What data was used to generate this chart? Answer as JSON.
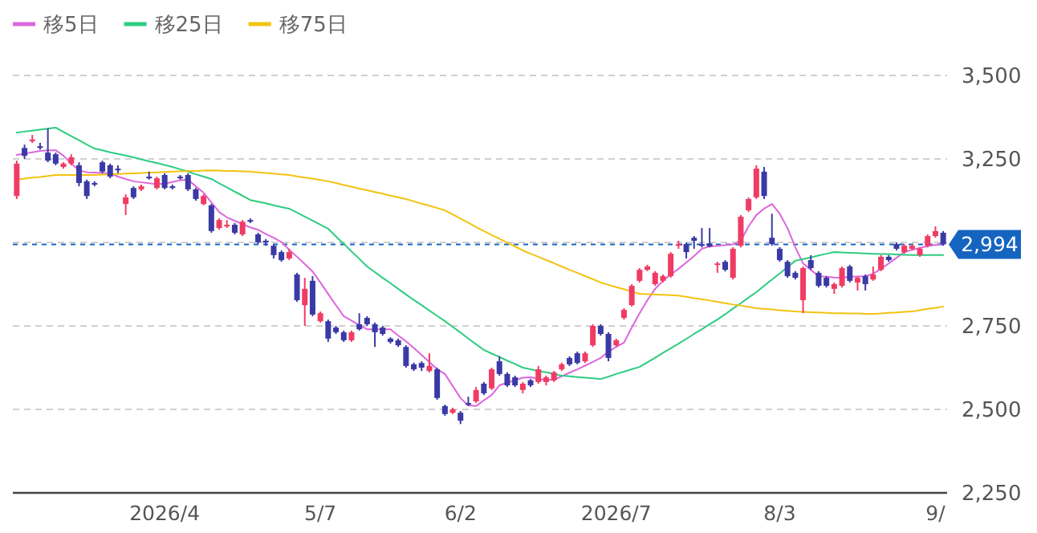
{
  "chart_data": {
    "type": "candlestick",
    "categories": [
      null,
      null,
      null,
      null,
      null,
      null,
      null,
      null,
      null,
      null,
      null,
      null,
      null,
      null,
      null,
      null,
      null,
      null,
      null,
      "2026/4",
      null,
      null,
      null,
      null,
      null,
      null,
      null,
      null,
      null,
      null,
      null,
      null,
      null,
      null,
      null,
      null,
      null,
      null,
      null,
      "5/7",
      null,
      null,
      null,
      null,
      null,
      null,
      null,
      null,
      null,
      null,
      null,
      null,
      null,
      null,
      null,
      null,
      null,
      "6/2",
      null,
      null,
      null,
      null,
      null,
      null,
      null,
      null,
      null,
      null,
      null,
      null,
      null,
      null,
      null,
      null,
      null,
      null,
      null,
      "2026/7",
      null,
      null,
      null,
      null,
      null,
      null,
      null,
      null,
      null,
      null,
      null,
      null,
      null,
      null,
      null,
      null,
      null,
      null,
      null,
      null,
      "8/3",
      null,
      null,
      null,
      null,
      null,
      null,
      null,
      null,
      null,
      null,
      null,
      null,
      null,
      null,
      null,
      null,
      null,
      null,
      null,
      "9/",
      null
    ],
    "ohlc": [
      [
        3139,
        3245,
        3130,
        3236
      ],
      [
        3283,
        3293,
        3250,
        3259
      ],
      [
        3303,
        3322,
        3298,
        3308
      ],
      [
        3288,
        3298,
        3278,
        3283
      ],
      [
        3269,
        3341,
        3240,
        3245
      ],
      [
        3264,
        3269,
        3231,
        3236
      ],
      [
        3226,
        3240,
        3221,
        3236
      ],
      [
        3236,
        3264,
        3231,
        3255
      ],
      [
        3231,
        3240,
        3168,
        3178
      ],
      [
        3183,
        3188,
        3130,
        3139
      ],
      [
        3178,
        3183,
        3168,
        3173
      ],
      [
        3240,
        3245,
        3207,
        3212
      ],
      [
        3231,
        3236,
        3192,
        3197
      ],
      [
        3221,
        3231,
        3207,
        3216
      ],
      [
        3115,
        3144,
        3082,
        3135
      ],
      [
        3163,
        3168,
        3130,
        3135
      ],
      [
        3159,
        3173,
        3154,
        3168
      ],
      [
        3197,
        3212,
        3188,
        3192
      ],
      [
        3163,
        3197,
        3159,
        3192
      ],
      [
        3202,
        3207,
        3159,
        3163
      ],
      [
        3168,
        3173,
        3159,
        3163
      ],
      [
        3197,
        3202,
        3188,
        3192
      ],
      [
        3202,
        3207,
        3154,
        3159
      ],
      [
        3159,
        3163,
        3125,
        3130
      ],
      [
        3115,
        3144,
        3111,
        3139
      ],
      [
        3111,
        3115,
        3029,
        3034
      ],
      [
        3043,
        3072,
        3038,
        3067
      ],
      [
        3048,
        3067,
        3043,
        3053
      ],
      [
        3053,
        3058,
        3024,
        3029
      ],
      [
        3024,
        3067,
        3019,
        3062
      ],
      [
        3067,
        3072,
        3058,
        3062
      ],
      [
        3024,
        3029,
        2995,
        3000
      ],
      [
        3005,
        3010,
        2990,
        3000
      ],
      [
        2990,
        2995,
        2952,
        2962
      ],
      [
        2971,
        2976,
        2942,
        2947
      ],
      [
        2952,
        2981,
        2947,
        2971
      ],
      [
        2904,
        2909,
        2822,
        2827
      ],
      [
        2812,
        2894,
        2750,
        2861
      ],
      [
        2885,
        2899,
        2779,
        2784
      ],
      [
        2764,
        2793,
        2760,
        2788
      ],
      [
        2764,
        2769,
        2702,
        2712
      ],
      [
        2745,
        2750,
        2726,
        2731
      ],
      [
        2731,
        2736,
        2702,
        2707
      ],
      [
        2707,
        2736,
        2702,
        2731
      ],
      [
        2755,
        2788,
        2736,
        2740
      ],
      [
        2774,
        2779,
        2750,
        2755
      ],
      [
        2755,
        2760,
        2687,
        2731
      ],
      [
        2745,
        2750,
        2721,
        2726
      ],
      [
        2712,
        2716,
        2697,
        2702
      ],
      [
        2707,
        2712,
        2687,
        2692
      ],
      [
        2687,
        2692,
        2625,
        2630
      ],
      [
        2635,
        2640,
        2615,
        2620
      ],
      [
        2639,
        2644,
        2615,
        2625
      ],
      [
        2615,
        2668,
        2611,
        2630
      ],
      [
        2620,
        2625,
        2529,
        2534
      ],
      [
        2510,
        2514,
        2481,
        2486
      ],
      [
        2490,
        2505,
        2486,
        2500
      ],
      [
        2490,
        2495,
        2456,
        2466
      ],
      [
        2519,
        2538,
        2510,
        2514
      ],
      [
        2524,
        2567,
        2519,
        2558
      ],
      [
        2577,
        2582,
        2543,
        2548
      ],
      [
        2563,
        2625,
        2558,
        2620
      ],
      [
        2644,
        2659,
        2601,
        2606
      ],
      [
        2606,
        2611,
        2567,
        2572
      ],
      [
        2596,
        2601,
        2567,
        2572
      ],
      [
        2558,
        2582,
        2548,
        2577
      ],
      [
        2587,
        2591,
        2567,
        2572
      ],
      [
        2582,
        2630,
        2577,
        2620
      ],
      [
        2582,
        2601,
        2572,
        2596
      ],
      [
        2587,
        2615,
        2582,
        2611
      ],
      [
        2620,
        2640,
        2615,
        2635
      ],
      [
        2654,
        2659,
        2630,
        2635
      ],
      [
        2668,
        2673,
        2635,
        2639
      ],
      [
        2644,
        2673,
        2639,
        2668
      ],
      [
        2692,
        2755,
        2687,
        2750
      ],
      [
        2750,
        2755,
        2721,
        2726
      ],
      [
        2726,
        2731,
        2644,
        2654
      ],
      [
        2692,
        2712,
        2687,
        2707
      ],
      [
        2774,
        2803,
        2769,
        2798
      ],
      [
        2812,
        2875,
        2808,
        2870
      ],
      [
        2885,
        2923,
        2880,
        2918
      ],
      [
        2918,
        2933,
        2914,
        2928
      ],
      [
        2875,
        2914,
        2870,
        2909
      ],
      [
        2885,
        2904,
        2880,
        2899
      ],
      [
        2899,
        2971,
        2894,
        2966
      ],
      [
        2990,
        3005,
        2981,
        2995
      ],
      [
        2995,
        3000,
        2952,
        2971
      ],
      [
        3014,
        3019,
        2981,
        3005
      ],
      [
        2995,
        3043,
        2985,
        2990
      ],
      [
        2997,
        3043,
        2985,
        2988
      ],
      [
        2933,
        2942,
        2909,
        2937
      ],
      [
        2942,
        2947,
        2913,
        2918
      ],
      [
        2894,
        2986,
        2889,
        2981
      ],
      [
        2990,
        3082,
        2985,
        3077
      ],
      [
        3096,
        3135,
        3091,
        3130
      ],
      [
        3135,
        3231,
        3130,
        3221
      ],
      [
        3212,
        3226,
        3130,
        3139
      ],
      [
        3014,
        3086,
        2990,
        2995
      ],
      [
        2981,
        2986,
        2942,
        2947
      ],
      [
        2942,
        2947,
        2894,
        2899
      ],
      [
        2909,
        2914,
        2889,
        2894
      ],
      [
        2827,
        2928,
        2788,
        2923
      ],
      [
        2947,
        2962,
        2918,
        2923
      ],
      [
        2909,
        2914,
        2865,
        2870
      ],
      [
        2894,
        2899,
        2865,
        2870
      ],
      [
        2861,
        2880,
        2846,
        2875
      ],
      [
        2870,
        2928,
        2865,
        2923
      ],
      [
        2928,
        2933,
        2880,
        2885
      ],
      [
        2880,
        2899,
        2856,
        2894
      ],
      [
        2899,
        2904,
        2856,
        2875
      ],
      [
        2889,
        2928,
        2885,
        2904
      ],
      [
        2918,
        2962,
        2914,
        2957
      ],
      [
        2957,
        2962,
        2942,
        2947
      ],
      [
        2995,
        3000,
        2976,
        2981
      ],
      [
        2971,
        2995,
        2966,
        2990
      ],
      [
        2981,
        2995,
        2976,
        2990
      ],
      [
        2962,
        2986,
        2957,
        2981
      ],
      [
        2990,
        3024,
        2985,
        3019
      ],
      [
        3019,
        3048,
        3014,
        3034
      ],
      [
        3029,
        3034,
        2990,
        2994
      ]
    ],
    "colors": [
      "#f03c64",
      "#3a3aa6",
      "#f03c64",
      "#3a3aa6",
      "#3a3aa6",
      "#3a3aa6",
      "#f03c64",
      "#f03c64",
      "#3a3aa6",
      "#3a3aa6",
      "#3a3aa6",
      "#3a3aa6",
      "#3a3aa6",
      "#3a3aa6",
      "#f03c64",
      "#3a3aa6",
      "#f03c64",
      "#3a3aa6",
      "#f03c64",
      "#3a3aa6",
      "#3a3aa6",
      "#3a3aa6",
      "#3a3aa6",
      "#3a3aa6",
      "#f03c64",
      "#3a3aa6",
      "#f03c64",
      "#f03c64",
      "#3a3aa6",
      "#f03c64",
      "#3a3aa6",
      "#3a3aa6",
      "#3a3aa6",
      "#3a3aa6",
      "#3a3aa6",
      "#f03c64",
      "#3a3aa6",
      "#f03c64",
      "#3a3aa6",
      "#f03c64",
      "#3a3aa6",
      "#3a3aa6",
      "#3a3aa6",
      "#f03c64",
      "#3a3aa6",
      "#3a3aa6",
      "#3a3aa6",
      "#3a3aa6",
      "#3a3aa6",
      "#3a3aa6",
      "#3a3aa6",
      "#3a3aa6",
      "#3a3aa6",
      "#f03c64",
      "#3a3aa6",
      "#3a3aa6",
      "#f03c64",
      "#3a3aa6",
      "#3a3aa6",
      "#f03c64",
      "#3a3aa6",
      "#f03c64",
      "#3a3aa6",
      "#3a3aa6",
      "#3a3aa6",
      "#f03c64",
      "#3a3aa6",
      "#f03c64",
      "#f03c64",
      "#f03c64",
      "#f03c64",
      "#3a3aa6",
      "#3a3aa6",
      "#f03c64",
      "#f03c64",
      "#3a3aa6",
      "#3a3aa6",
      "#f03c64",
      "#f03c64",
      "#f03c64",
      "#f03c64",
      "#f03c64",
      "#f03c64",
      "#f03c64",
      "#f03c64",
      "#f03c64",
      "#3a3aa6",
      "#3a3aa6",
      "#3a3aa6",
      "#3a3aa6",
      "#f03c64",
      "#3a3aa6",
      "#f03c64",
      "#f03c64",
      "#f03c64",
      "#f03c64",
      "#3a3aa6",
      "#3a3aa6",
      "#3a3aa6",
      "#3a3aa6",
      "#3a3aa6",
      "#f03c64",
      "#3a3aa6",
      "#3a3aa6",
      "#3a3aa6",
      "#f03c64",
      "#f03c64",
      "#3a3aa6",
      "#f03c64",
      "#3a3aa6",
      "#f03c64",
      "#f03c64",
      "#3a3aa6",
      "#3a3aa6",
      "#f03c64",
      "#f03c64",
      "#f03c64",
      "#f03c64",
      "#f03c64",
      "#3a3aa6"
    ],
    "series": [
      {
        "name": "移5日",
        "type": "line",
        "color": "#dd66dd",
        "values": [
          3262,
          3266,
          3270,
          3274,
          3276,
          3276,
          3260,
          3236,
          3216,
          3210,
          3209,
          3208,
          3207,
          3197,
          3190,
          3183,
          3180,
          3177,
          3174,
          3176,
          3181,
          3186,
          3188,
          3168,
          3149,
          3120,
          3091,
          3075,
          3065,
          3055,
          3045,
          3038,
          3025,
          3014,
          3001,
          2978,
          2957,
          2935,
          2913,
          2880,
          2846,
          2812,
          2779,
          2766,
          2752,
          2740,
          2740,
          2740,
          2740,
          2721,
          2704,
          2684,
          2663,
          2642,
          2620,
          2606,
          2570,
          2534,
          2512,
          2510,
          2527,
          2543,
          2572,
          2580,
          2587,
          2595,
          2596,
          2591,
          2588,
          2589,
          2599,
          2610,
          2620,
          2631,
          2642,
          2654,
          2673,
          2687,
          2700,
          2745,
          2788,
          2827,
          2861,
          2885,
          2904,
          2921,
          2940,
          2959,
          2981,
          2988,
          2990,
          2992,
          2994,
          3005,
          3048,
          3082,
          3101,
          3115,
          3086,
          3043,
          2986,
          2937,
          2918,
          2899,
          2897,
          2895,
          2894,
          2897,
          2898,
          2899,
          2906,
          2921,
          2937,
          2954,
          2971,
          2978,
          2983,
          2989,
          2993,
          2995
        ]
      },
      {
        "name": "移25日",
        "type": "line",
        "color": "#2ecc80",
        "values": [
          3329,
          3332,
          3335,
          3338,
          3341,
          3344,
          3331,
          3318,
          3306,
          3293,
          3281,
          3276,
          3270,
          3265,
          3260,
          3255,
          3249,
          3243,
          3238,
          3232,
          3226,
          3219,
          3212,
          3204,
          3197,
          3190,
          3177,
          3165,
          3152,
          3140,
          3127,
          3122,
          3117,
          3111,
          3106,
          3101,
          3089,
          3077,
          3065,
          3053,
          3041,
          3018,
          2996,
          2973,
          2951,
          2928,
          2911,
          2894,
          2878,
          2861,
          2844,
          2828,
          2812,
          2796,
          2780,
          2764,
          2747,
          2730,
          2712,
          2695,
          2678,
          2667,
          2657,
          2646,
          2636,
          2625,
          2620,
          2615,
          2611,
          2606,
          2601,
          2599,
          2597,
          2595,
          2593,
          2591,
          2598,
          2606,
          2613,
          2620,
          2627,
          2641,
          2655,
          2669,
          2683,
          2697,
          2711,
          2726,
          2740,
          2755,
          2769,
          2785,
          2802,
          2818,
          2835,
          2851,
          2870,
          2889,
          2907,
          2926,
          2945,
          2950,
          2955,
          2961,
          2966,
          2971,
          2970,
          2969,
          2968,
          2967,
          2966,
          2965,
          2965,
          2964,
          2963,
          2962,
          2962,
          2962,
          2962,
          2962
        ]
      },
      {
        "name": "移75日",
        "type": "line",
        "color": "#f2c311",
        "values": [
          3188,
          3191,
          3194,
          3196,
          3199,
          3202,
          3202,
          3202,
          3202,
          3202,
          3202,
          3203,
          3204,
          3205,
          3206,
          3207,
          3208,
          3209,
          3210,
          3211,
          3212,
          3213,
          3214,
          3214,
          3215,
          3216,
          3215,
          3214,
          3214,
          3213,
          3212,
          3210,
          3208,
          3206,
          3204,
          3202,
          3198,
          3194,
          3191,
          3187,
          3183,
          3178,
          3172,
          3167,
          3161,
          3156,
          3151,
          3146,
          3140,
          3135,
          3130,
          3123,
          3116,
          3110,
          3103,
          3096,
          3084,
          3071,
          3059,
          3046,
          3034,
          3022,
          3011,
          2999,
          2988,
          2976,
          2966,
          2957,
          2947,
          2938,
          2928,
          2918,
          2909,
          2899,
          2890,
          2880,
          2873,
          2866,
          2860,
          2853,
          2846,
          2845,
          2844,
          2843,
          2842,
          2841,
          2837,
          2833,
          2830,
          2826,
          2822,
          2818,
          2814,
          2811,
          2807,
          2803,
          2801,
          2799,
          2797,
          2795,
          2793,
          2792,
          2791,
          2790,
          2789,
          2788,
          2788,
          2787,
          2787,
          2786,
          2786,
          2787,
          2789,
          2790,
          2792,
          2793,
          2797,
          2801,
          2804,
          2808
        ]
      }
    ],
    "ylim": [
      2250,
      3500
    ],
    "yticks": [
      {
        "value": 2250,
        "label": "2,250"
      },
      {
        "value": 2500,
        "label": "2,500"
      },
      {
        "value": 2750,
        "label": "2,750"
      },
      {
        "value": 3000,
        "label": null
      },
      {
        "value": 3250,
        "label": "3,250"
      },
      {
        "value": 3500,
        "label": "3,500"
      }
    ],
    "grid": "y",
    "legend": "top left",
    "ref_lines": [
      {
        "axis": "y",
        "value": 2994,
        "label": "2,994",
        "color": "#1565c0",
        "line_style": "dashed"
      }
    ]
  }
}
